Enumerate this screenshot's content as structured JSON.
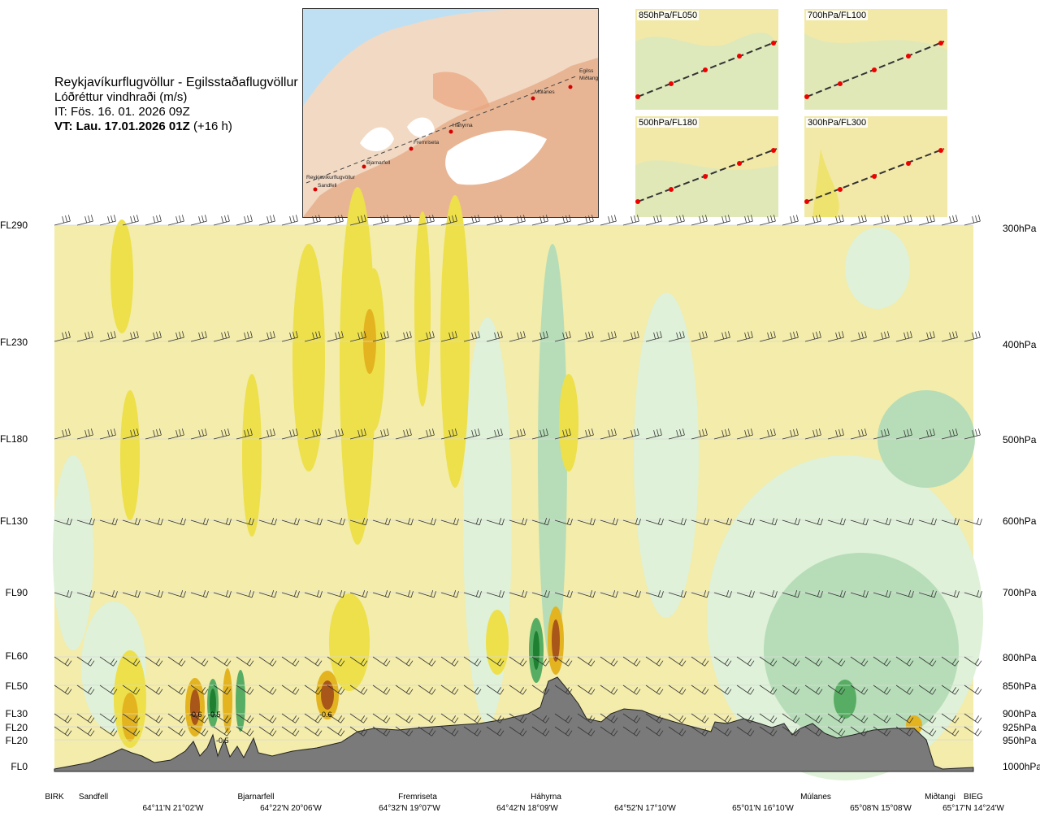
{
  "header": {
    "route": "Reykjavíkurflugvöllur - Egilsstaðaflugvöllur",
    "variable": "Lóðréttur vindhraði (m/s)",
    "issue_time": "IT: Fös. 16. 01. 2026 09Z",
    "valid_time": "VT: Lau. 17.01.2026 01Z",
    "lead": "(+16 h)"
  },
  "map": {
    "stations": [
      "Reykjavíkurflugvöllur",
      "Sandfell",
      "Bjarnarfell",
      "Fremriseta",
      "Háhyrna",
      "Múlanes",
      "Egilss",
      "Miðtangi"
    ]
  },
  "insets": [
    {
      "label": "850hPa/FL050"
    },
    {
      "label": "700hPa/FL100"
    },
    {
      "label": "500hPa/FL180"
    },
    {
      "label": "300hPa/FL300"
    }
  ],
  "levels_left": [
    "FL290",
    "FL230",
    "FL180",
    "FL130",
    "FL90",
    "FL60",
    "FL50",
    "FL30",
    "FL20",
    "FL20",
    "FL0"
  ],
  "levels_right": [
    "300hPa",
    "400hPa",
    "500hPa",
    "600hPa",
    "700hPa",
    "800hPa",
    "850hPa",
    "900hPa",
    "925hPa",
    "950hPa",
    "1000hPa"
  ],
  "waypoints": [
    "BIRK",
    "Sandfell",
    "Bjarnarfell",
    "Fremriseta",
    "Háhyrna",
    "Múlanes",
    "Miðtangi",
    "BIEG"
  ],
  "coords": [
    "64°11'N 21°02'W",
    "64°22'N 20°06'W",
    "64°32'N 19°07'W",
    "64°42'N 18°09'W",
    "64°52'N 17°10'W",
    "65°01'N 16°10'W",
    "65°08'N 15°08'W",
    "65°17'N 14°24'W"
  ],
  "chart_data": {
    "type": "heatmap",
    "title": "Lóðréttur vindhraði (m/s)",
    "xlabel": "",
    "ylabel": "",
    "y_axis_flight_levels": [
      "FL0",
      "FL20",
      "FL20",
      "FL30",
      "FL50",
      "FL60",
      "FL90",
      "FL130",
      "FL180",
      "FL230",
      "FL290"
    ],
    "y_axis_pressure_hPa": [
      1000,
      950,
      925,
      900,
      850,
      800,
      700,
      600,
      500,
      400,
      300
    ],
    "x_waypoints": [
      "BIRK",
      "Sandfell",
      "Bjarnarfell",
      "Fremriseta",
      "Háhyrna",
      "Múlanes",
      "Miðtangi",
      "BIEG"
    ],
    "contour_labels": [
      "-0.6",
      "-0.5",
      "-0.5",
      "-0.6"
    ],
    "colors": {
      "background": "#f3ecaa",
      "updraft_weak": "#ede04a",
      "updraft_mod": "#e3b420",
      "updraft_strong": "#a8561a",
      "downdraft_weak": "#dff1d8",
      "downdraft_mod": "#b6ddb8",
      "downdraft_strong": "#58ad64",
      "downdraft_max": "#1e8030",
      "terrain": "#7a7a7a"
    }
  }
}
